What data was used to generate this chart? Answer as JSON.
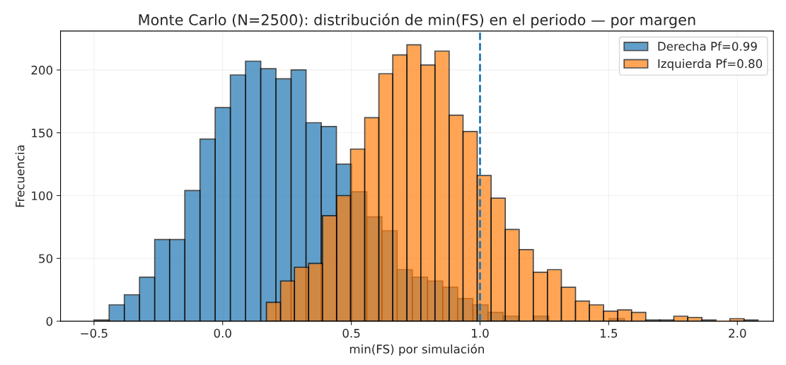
{
  "chart_data": {
    "type": "histogram",
    "title": "Monte Carlo (N=2500): distribución de min(FS) en el periodo — por margen",
    "xlabel": "min(FS) por simulación",
    "ylabel": "Frecuencia",
    "series": [
      {
        "name": "Derecha Pf=0.99",
        "color": "#1f77b4",
        "values": [
          1,
          13,
          21,
          35,
          65,
          65,
          104,
          145,
          170,
          196,
          207,
          201,
          193,
          200,
          158,
          155,
          125,
          103,
          83,
          72,
          41,
          35,
          32,
          27,
          18,
          13,
          7,
          4,
          0,
          4,
          0,
          0,
          0,
          0,
          2
        ]
      },
      {
        "name": "Izquierda Pf=0.80",
        "color": "#ff7f0e",
        "bins": [
          0.17,
          0.225,
          0.279,
          0.334,
          0.388,
          0.443,
          0.497,
          0.552,
          0.607,
          0.661,
          0.716,
          0.77,
          0.825,
          0.88,
          0.934,
          0.989,
          1.043,
          1.098,
          1.152,
          1.207,
          1.262,
          1.316,
          1.371,
          1.425,
          1.48,
          1.535,
          1.589,
          1.644,
          1.698,
          1.753,
          1.807,
          1.862,
          1.917,
          1.971,
          2.026,
          2.08
        ],
        "values": [
          15,
          32,
          43,
          46,
          84,
          100,
          137,
          162,
          197,
          212,
          220,
          204,
          215,
          164,
          151,
          116,
          98,
          73,
          57,
          39,
          41,
          27,
          16,
          13,
          8,
          9,
          7,
          1,
          1,
          4,
          3,
          1,
          0,
          2,
          1
        ]
      }
    ],
    "bins": [
      -0.5,
      -0.441,
      -0.382,
      -0.323,
      -0.264,
      -0.206,
      -0.147,
      -0.088,
      -0.029,
      0.03,
      0.089,
      0.148,
      0.207,
      0.266,
      0.324,
      0.383,
      0.442,
      0.501,
      0.56,
      0.619,
      0.678,
      0.737,
      0.796,
      0.855,
      0.913,
      0.972,
      1.031,
      1.09,
      1.149,
      1.208,
      1.267,
      1.326,
      1.385,
      1.444,
      1.502,
      1.561
    ],
    "xlim": [
      -0.63,
      2.14
    ],
    "ylim": [
      0,
      231
    ],
    "xticks": [
      {
        "value": -0.5,
        "label": "−0.5"
      },
      {
        "value": 0.0,
        "label": "0.0"
      },
      {
        "value": 0.5,
        "label": "0.5"
      },
      {
        "value": 1.0,
        "label": "1.0"
      },
      {
        "value": 1.5,
        "label": "1.5"
      },
      {
        "value": 2.0,
        "label": "2.0"
      }
    ],
    "yticks": [
      0,
      50,
      100,
      150,
      200
    ],
    "ref_lines": [
      {
        "axis": "x",
        "value": 1.0,
        "color": "#1f77b4",
        "line_style": "dashed"
      }
    ],
    "grid": true,
    "legend": "top right"
  }
}
